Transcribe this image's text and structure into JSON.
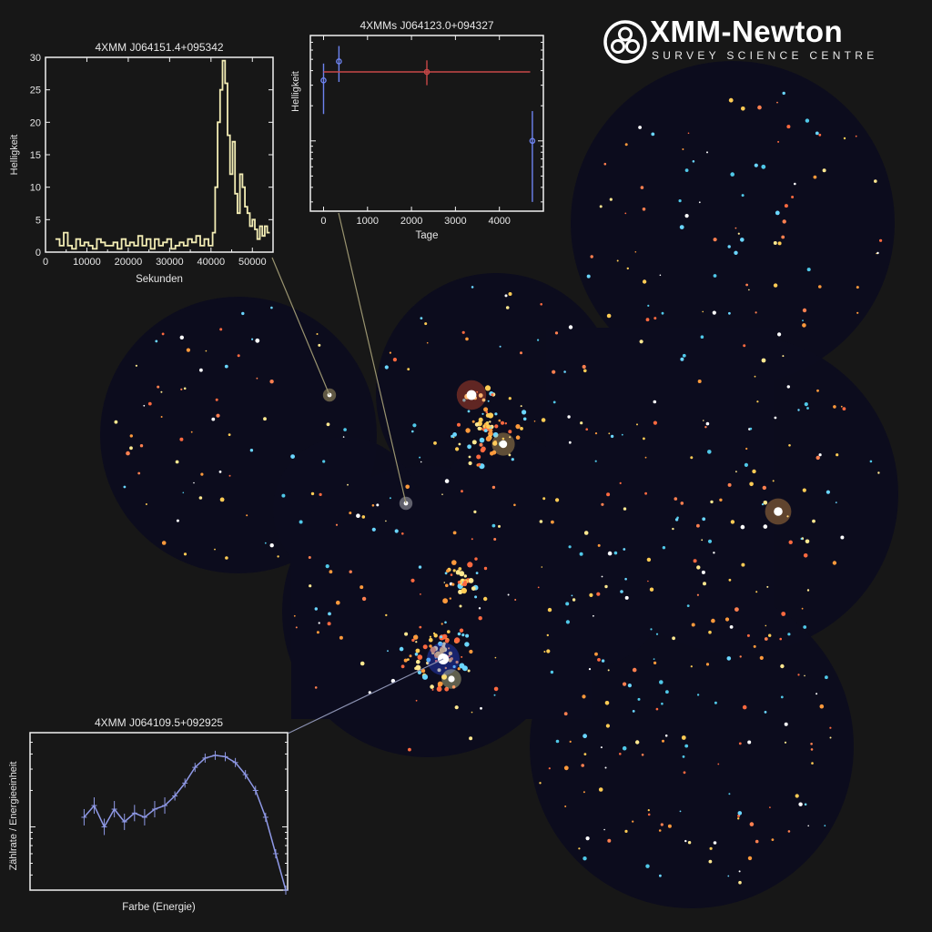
{
  "logo": {
    "title": "XMM-Newton",
    "subtitle": "SURVEY SCIENCE CENTRE",
    "icon": "three-telescope-mirrors-icon"
  },
  "colors": {
    "background": "#171717",
    "sky_background": "#0c0c1e",
    "lightcurve_line": "#f2ecb4",
    "longterm_blue": "#6d83f0",
    "longterm_red": "#c84848",
    "spectrum_line": "#8f99e6",
    "connector": "#9a9470"
  },
  "chart_data": [
    {
      "type": "line",
      "title": "4XMM J064151.4+095342",
      "xlabel": "Sekunden",
      "ylabel": "Helligkeit",
      "xlim": [
        0,
        55000
      ],
      "ylim": [
        0,
        30
      ],
      "xticks": [
        0,
        10000,
        20000,
        30000,
        40000,
        50000
      ],
      "yticks": [
        0,
        5,
        10,
        15,
        20,
        25,
        30
      ],
      "step": true,
      "x": [
        2400,
        3400,
        4400,
        5400,
        6400,
        7400,
        8400,
        9400,
        10400,
        11400,
        12400,
        13400,
        14400,
        15400,
        16400,
        17400,
        18400,
        19400,
        20400,
        21400,
        22400,
        23400,
        24400,
        25400,
        26400,
        27400,
        28400,
        29400,
        30400,
        31400,
        32400,
        33400,
        34400,
        35400,
        36400,
        37400,
        38400,
        39400,
        40400,
        41000,
        41600,
        42200,
        42800,
        43400,
        44000,
        44600,
        45200,
        45800,
        46400,
        47000,
        47600,
        48200,
        48800,
        49400,
        50000,
        50600,
        51200,
        51800,
        52400,
        53000,
        53600
      ],
      "y": [
        2,
        1,
        3,
        1,
        0.5,
        2,
        1,
        1.5,
        1,
        0.5,
        2,
        1.5,
        1,
        1,
        1.5,
        0.5,
        2,
        1,
        1.5,
        1,
        2.5,
        1,
        2,
        0.5,
        2,
        1,
        1.5,
        2,
        0.5,
        1,
        1.5,
        1,
        2,
        1.5,
        2.5,
        1,
        2,
        1,
        3,
        10,
        20,
        25,
        29.5,
        26,
        18,
        12,
        17,
        9,
        6,
        12,
        10,
        7,
        6,
        4,
        5,
        3.5,
        2,
        4,
        2.5,
        4,
        3
      ]
    },
    {
      "type": "scatter",
      "title": "4XMMs J064123.0+094327",
      "xlabel": "Tage",
      "ylabel": "Helligkeit",
      "xlim": [
        -300,
        5000
      ],
      "xticks": [
        0,
        1000,
        2000,
        3000,
        4000
      ],
      "yscale": "log",
      "ylim": [
        0.25,
        8
      ],
      "points": [
        {
          "x": 0,
          "y": 3.3,
          "ylow": 1.7,
          "yhigh": 4.6,
          "xerr": 0,
          "color": "blue"
        },
        {
          "x": 350,
          "y": 4.8,
          "ylow": 3.2,
          "yhigh": 6.5,
          "xerr": 0,
          "color": "blue"
        },
        {
          "x": 2350,
          "y": 3.9,
          "ylow": 3.0,
          "yhigh": 4.9,
          "xerr": 2350,
          "color": "red"
        },
        {
          "x": 4750,
          "y": 1.0,
          "ylow": 0.3,
          "yhigh": 1.8,
          "xerr": 0,
          "color": "blue"
        }
      ]
    },
    {
      "type": "line",
      "title": "4XMM J064109.5+092925",
      "xlabel": "Farbe (Energie)",
      "ylabel": "Zählrate / Energieeinheit",
      "yscale": "log",
      "xlim": [
        0,
        1
      ],
      "ylim": [
        0.3,
        6
      ],
      "x": [
        0.2,
        0.24,
        0.28,
        0.32,
        0.36,
        0.4,
        0.44,
        0.48,
        0.52,
        0.56,
        0.6,
        0.64,
        0.68,
        0.72,
        0.76,
        0.8,
        0.84,
        0.88,
        0.92,
        0.96,
        1.0
      ],
      "y": [
        1.2,
        1.5,
        1.0,
        1.4,
        1.1,
        1.3,
        1.2,
        1.4,
        1.5,
        1.8,
        2.3,
        3.1,
        3.7,
        3.9,
        3.8,
        3.4,
        2.7,
        2.0,
        1.2,
        0.6,
        0.3
      ]
    }
  ]
}
